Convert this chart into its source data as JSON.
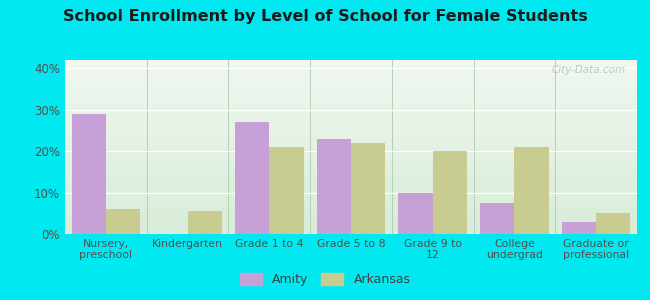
{
  "title": "School Enrollment by Level of School for Female Students",
  "categories": [
    "Nursery,\npreschool",
    "Kindergarten",
    "Grade 1 to 4",
    "Grade 5 to 8",
    "Grade 9 to\n12",
    "College\nundergrad",
    "Graduate or\nprofessional"
  ],
  "amity_values": [
    29,
    0,
    27,
    23,
    10,
    7.5,
    3
  ],
  "arkansas_values": [
    6,
    5.5,
    21,
    22,
    20,
    21,
    5
  ],
  "amity_color": "#c8a0d8",
  "arkansas_color": "#c8cc90",
  "background_color": "#00e8f0",
  "plot_bg_top": "#f0f8f0",
  "plot_bg_bottom": "#d8ecd8",
  "ylim": [
    0,
    42
  ],
  "yticks": [
    0,
    10,
    20,
    30,
    40
  ],
  "yticklabels": [
    "0%",
    "10%",
    "20%",
    "30%",
    "40%"
  ],
  "bar_width": 0.42,
  "legend_labels": [
    "Amity",
    "Arkansas"
  ],
  "watermark": "City-Data.com"
}
